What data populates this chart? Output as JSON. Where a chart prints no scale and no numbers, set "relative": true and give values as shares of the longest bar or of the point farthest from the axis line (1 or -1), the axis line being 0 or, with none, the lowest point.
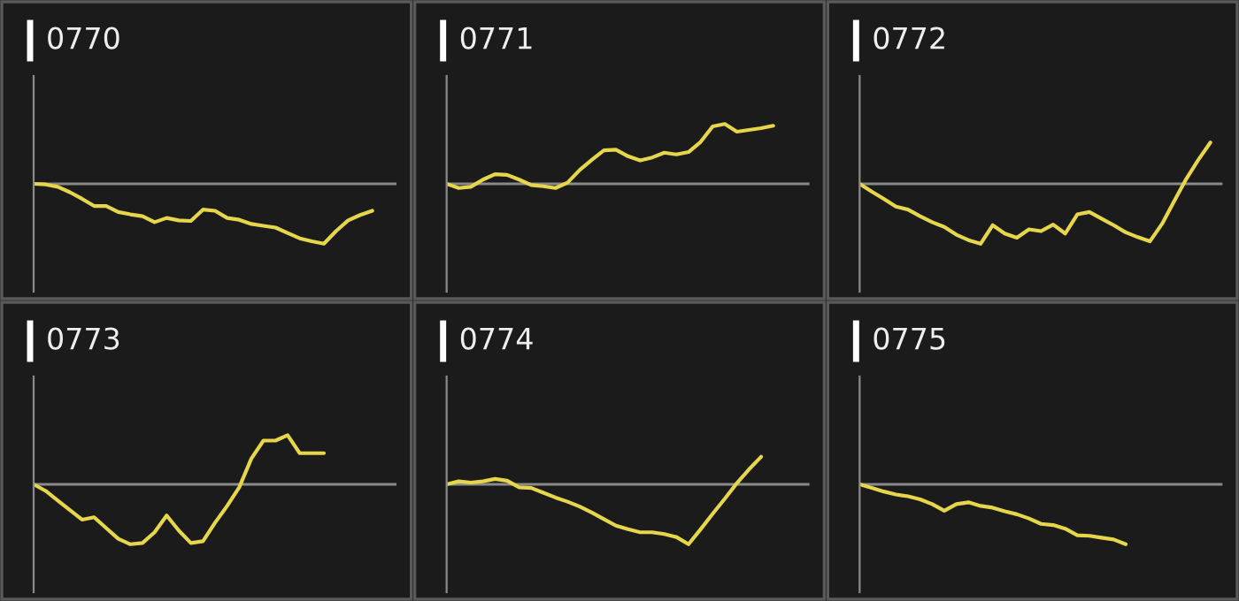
{
  "chart_data": [
    {
      "type": "line",
      "title": "0770",
      "relative": true,
      "color": "#e6d64b",
      "categories": [
        null,
        null,
        null,
        null,
        null,
        null,
        null,
        null,
        null,
        null,
        null,
        null,
        null,
        null,
        null,
        null,
        null,
        null,
        null,
        null,
        null,
        null,
        null,
        null,
        null,
        null,
        null,
        null,
        null,
        null,
        null
      ],
      "values": [
        0,
        -0.01,
        -0.05,
        -0.14,
        -0.25,
        -0.37,
        -0.37,
        -0.47,
        -0.51,
        -0.54,
        -0.64,
        -0.57,
        -0.61,
        -0.62,
        -0.43,
        -0.45,
        -0.57,
        -0.6,
        -0.67,
        -0.7,
        -0.73,
        -0.82,
        -0.91,
        -0.96,
        -1,
        -0.79,
        -0.61,
        -0.52,
        -0.45,
        null,
        null
      ]
    },
    {
      "type": "line",
      "title": "0771",
      "relative": true,
      "color": "#e6d64b",
      "categories": [
        null,
        null,
        null,
        null,
        null,
        null,
        null,
        null,
        null,
        null,
        null,
        null,
        null,
        null,
        null,
        null,
        null,
        null,
        null,
        null,
        null,
        null,
        null,
        null,
        null,
        null,
        null,
        null,
        null,
        null,
        null
      ],
      "values": [
        0,
        -0.07,
        -0.05,
        0.07,
        0.16,
        0.15,
        0.07,
        -0.02,
        -0.04,
        -0.07,
        0.02,
        0.23,
        0.4,
        0.56,
        0.57,
        0.46,
        0.39,
        0.44,
        0.52,
        0.49,
        0.53,
        0.7,
        0.96,
        1,
        0.87,
        0.9,
        0.93,
        0.97,
        null,
        null,
        null
      ]
    },
    {
      "type": "line",
      "title": "0772",
      "relative": true,
      "color": "#e6d64b",
      "categories": [
        null,
        null,
        null,
        null,
        null,
        null,
        null,
        null,
        null,
        null,
        null,
        null,
        null,
        null,
        null,
        null,
        null,
        null,
        null,
        null,
        null,
        null,
        null,
        null,
        null,
        null,
        null,
        null,
        null,
        null,
        null
      ],
      "values": [
        0,
        -0.13,
        -0.25,
        -0.38,
        -0.43,
        -0.54,
        -0.64,
        -0.72,
        -0.85,
        -0.94,
        -1,
        -0.69,
        -0.83,
        -0.9,
        -0.76,
        -0.79,
        -0.68,
        -0.83,
        -0.51,
        -0.47,
        -0.58,
        -0.69,
        -0.81,
        -0.89,
        -0.96,
        -0.67,
        -0.29,
        0.08,
        0.4,
        0.69,
        null
      ]
    },
    {
      "type": "line",
      "title": "0773",
      "relative": true,
      "color": "#e6d64b",
      "categories": [
        null,
        null,
        null,
        null,
        null,
        null,
        null,
        null,
        null,
        null,
        null,
        null,
        null,
        null,
        null,
        null,
        null,
        null,
        null,
        null,
        null,
        null,
        null,
        null,
        null,
        null,
        null,
        null,
        null,
        null,
        null
      ],
      "values": [
        0,
        -0.11,
        -0.27,
        -0.43,
        -0.59,
        -0.55,
        -0.73,
        -0.91,
        -1,
        -0.98,
        -0.8,
        -0.52,
        -0.77,
        -0.98,
        -0.95,
        -0.64,
        -0.36,
        -0.05,
        0.43,
        0.73,
        0.73,
        0.82,
        0.52,
        0.52,
        0.52,
        null,
        null,
        null,
        null,
        null,
        null
      ]
    },
    {
      "type": "line",
      "title": "0774",
      "relative": true,
      "color": "#e6d64b",
      "categories": [
        null,
        null,
        null,
        null,
        null,
        null,
        null,
        null,
        null,
        null,
        null,
        null,
        null,
        null,
        null,
        null,
        null,
        null,
        null,
        null,
        null,
        null,
        null,
        null,
        null,
        null,
        null,
        null,
        null,
        null,
        null
      ],
      "values": [
        0,
        0.05,
        0.03,
        0.05,
        0.09,
        0.06,
        -0.05,
        -0.06,
        -0.14,
        -0.22,
        -0.29,
        -0.37,
        -0.47,
        -0.58,
        -0.69,
        -0.75,
        -0.8,
        -0.8,
        -0.83,
        -0.88,
        -1,
        -0.75,
        -0.49,
        -0.24,
        0.02,
        0.25,
        0.46,
        null,
        null,
        null,
        null
      ]
    },
    {
      "type": "line",
      "title": "0775",
      "relative": true,
      "color": "#e6d64b",
      "categories": [
        null,
        null,
        null,
        null,
        null,
        null,
        null,
        null,
        null,
        null,
        null,
        null,
        null,
        null,
        null,
        null,
        null,
        null,
        null,
        null,
        null,
        null,
        null,
        null,
        null,
        null,
        null,
        null,
        null,
        null,
        null
      ],
      "values": [
        0,
        -0.06,
        -0.12,
        -0.17,
        -0.2,
        -0.25,
        -0.33,
        -0.44,
        -0.33,
        -0.3,
        -0.36,
        -0.39,
        -0.45,
        -0.5,
        -0.57,
        -0.66,
        -0.68,
        -0.74,
        -0.85,
        -0.86,
        -0.89,
        -0.92,
        -1,
        null,
        null,
        null,
        null,
        null,
        null,
        null,
        null
      ]
    }
  ]
}
